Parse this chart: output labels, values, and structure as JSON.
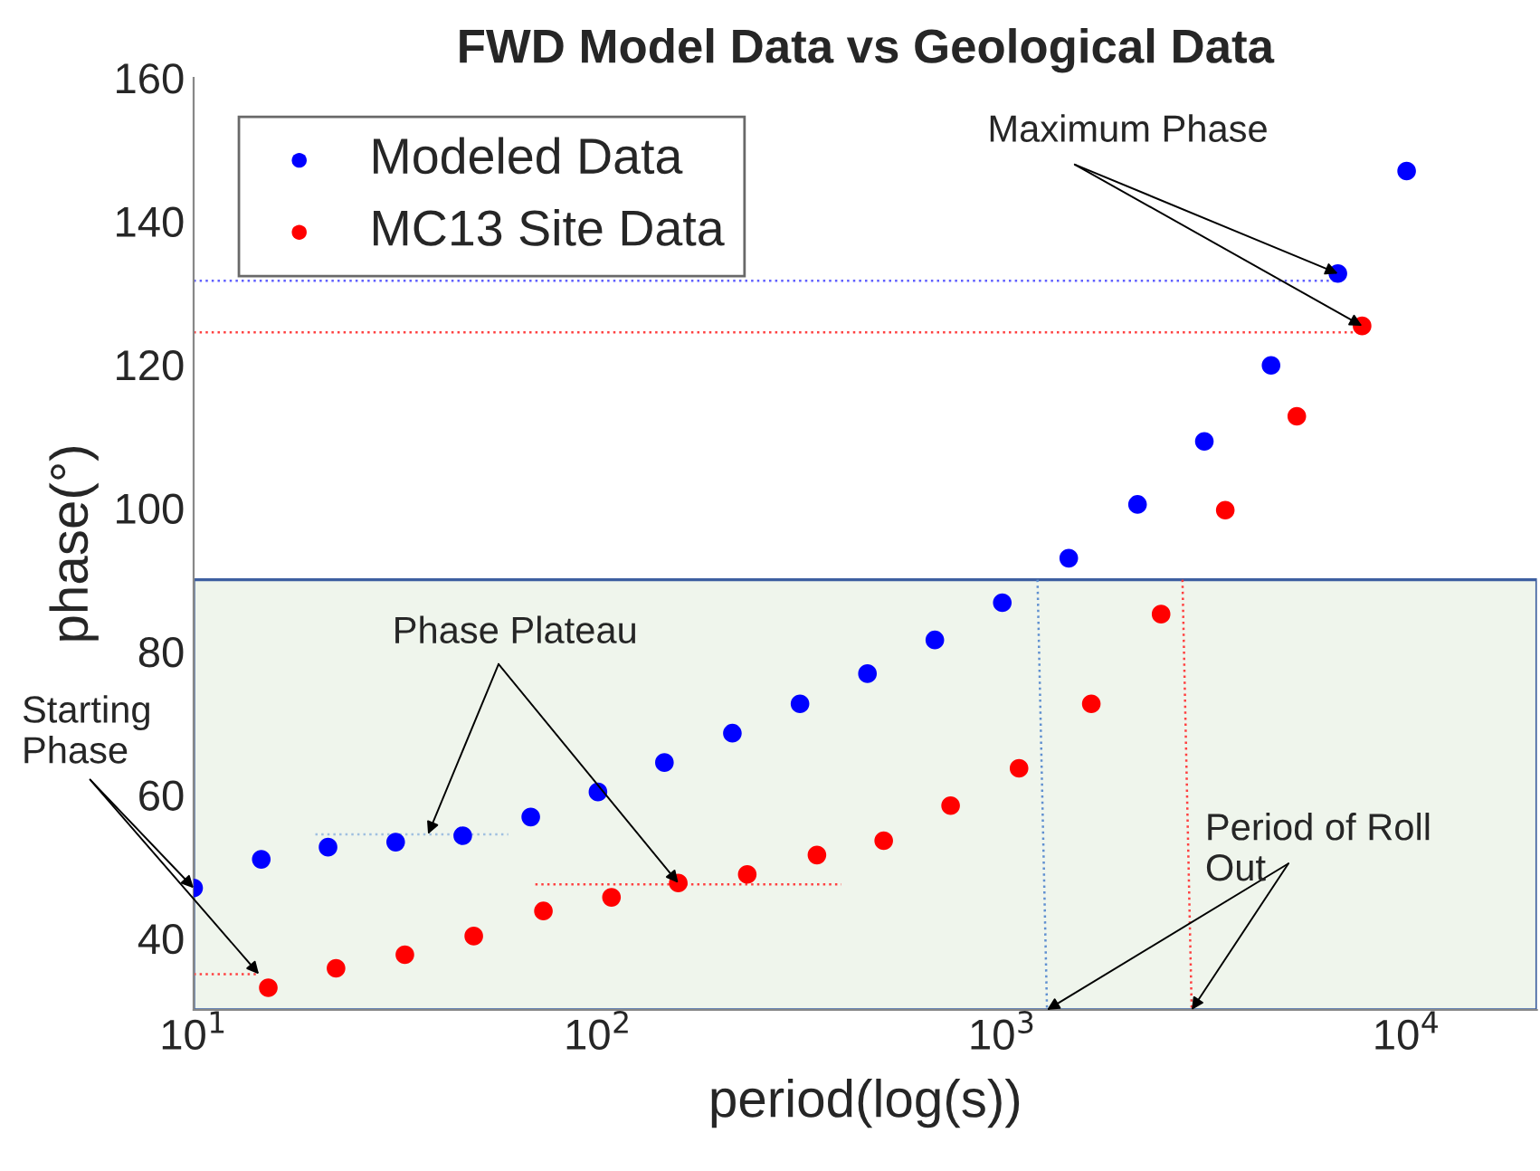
{
  "chart_data": {
    "type": "scatter",
    "title": "FWD Model Data vs Geological Data",
    "xlabel": "period(log(s))",
    "ylabel": "phase(°)",
    "log": "x",
    "xlim": [
      10,
      21000
    ],
    "xticks": [
      {
        "value": 10,
        "label": "10$^{1}$"
      },
      {
        "value": 100,
        "label": "10$^{2}$"
      },
      {
        "value": 1000,
        "label": "10$^{3}$"
      },
      {
        "value": 10000,
        "label": "10$^{4}$"
      }
    ],
    "ylim": [
      30,
      160
    ],
    "yticks": [
      40,
      60,
      80,
      100,
      120,
      140,
      160
    ],
    "grid": false,
    "legend": "top left",
    "bands": [
      {
        "axis": "y",
        "from": 30,
        "to": 90,
        "color": "#eff5ec"
      }
    ],
    "series": [
      {
        "name": "Modeled Data",
        "color": "#0000ff",
        "marker": "circle",
        "x": [
          10,
          14.7,
          21.5,
          31.6,
          46.3,
          68.2,
          100,
          146,
          215,
          316,
          464,
          681,
          1000,
          1460,
          2160,
          3160,
          4620,
          6760,
          10000
        ],
        "values": [
          47.0,
          51.0,
          52.7,
          53.4,
          54.3,
          56.9,
          60.4,
          64.5,
          68.6,
          72.7,
          76.9,
          81.6,
          86.8,
          93.0,
          100.5,
          109.3,
          119.9,
          132.7,
          147.0
        ]
      },
      {
        "name": "MC13 Site Data",
        "color": "#ff0000",
        "marker": "circle",
        "x": [
          15.3,
          22.5,
          33.3,
          49.3,
          73.3,
          108,
          158,
          234,
          348,
          509,
          745,
          1100,
          1660,
          2470,
          3560,
          5350,
          7760
        ],
        "values": [
          33.1,
          35.8,
          37.7,
          40.3,
          43.8,
          45.7,
          47.7,
          48.9,
          51.6,
          53.6,
          58.5,
          63.7,
          72.7,
          85.2,
          99.7,
          112.8,
          125.4
        ]
      },
      {
        "type": "line",
        "color": "#6060ff",
        "line_style": "dotted",
        "x": [
          10,
          6760
        ],
        "values": [
          131.7,
          131.7
        ]
      },
      {
        "type": "line",
        "color": "#ff4040",
        "line_style": "dotted",
        "x": [
          10,
          7760
        ],
        "values": [
          124.5,
          124.5
        ]
      },
      {
        "type": "line",
        "color": "#ff4040",
        "line_style": "dotted",
        "x": [
          10,
          14.5
        ],
        "values": [
          35,
          35
        ]
      },
      {
        "type": "line",
        "color": "#a0c0e0",
        "line_style": "dotted",
        "x": [
          20,
          60
        ],
        "values": [
          54.5,
          54.5
        ]
      },
      {
        "type": "line",
        "color": "#ff4040",
        "line_style": "dotted",
        "x": [
          70,
          400
        ],
        "values": [
          47.5,
          47.5
        ]
      },
      {
        "type": "line",
        "color": "#6090d0",
        "line_style": "dotted",
        "x": [
          1222,
          1290
        ],
        "values": [
          90,
          30
        ]
      },
      {
        "type": "line",
        "color": "#ff4040",
        "line_style": "dotted",
        "x": [
          2790,
          2940
        ],
        "values": [
          90,
          30
        ]
      }
    ],
    "annotations": [
      {
        "text": "Maximum Phase",
        "x": 6760,
        "y": 132.7
      },
      {
        "text": "Phase Plateau",
        "x": 38,
        "y": 54.5
      },
      {
        "text": "Starting\nPhase",
        "x": 10,
        "y": 47.0
      },
      {
        "text": "Period of Roll\nOut",
        "x": 1290,
        "y": 30
      }
    ]
  }
}
